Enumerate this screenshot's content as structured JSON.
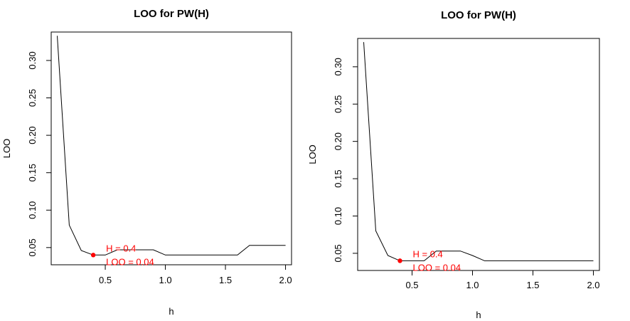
{
  "chart_data": [
    {
      "type": "line",
      "title": "LOO for PW(H)",
      "xlabel": "h",
      "ylabel": "LOO",
      "xlim": [
        0.05,
        2.05
      ],
      "ylim": [
        0.027,
        0.338
      ],
      "xticks": [
        "0.5",
        "1.0",
        "1.5",
        "2.0"
      ],
      "yticks": [
        "0.05",
        "0.10",
        "0.15",
        "0.20",
        "0.25",
        "0.30"
      ],
      "x": [
        0.1,
        0.2,
        0.3,
        0.4,
        0.5,
        0.6,
        0.7,
        0.8,
        0.9,
        1.0,
        1.1,
        1.2,
        1.3,
        1.4,
        1.5,
        1.6,
        1.7,
        1.8,
        1.9,
        2.0
      ],
      "y": [
        0.333,
        0.08,
        0.046,
        0.04,
        0.04,
        0.047,
        0.047,
        0.047,
        0.047,
        0.04,
        0.04,
        0.04,
        0.04,
        0.04,
        0.04,
        0.04,
        0.053,
        0.053,
        0.053,
        0.053
      ],
      "highlight": {
        "x": 0.4,
        "y": 0.04,
        "color": "#ff0000"
      },
      "annotations": [
        "H = 0.4",
        "LOO = 0.04"
      ],
      "line_color": "#000000",
      "grid": false
    },
    {
      "type": "line",
      "title": "LOO for PW(H)",
      "xlabel": "h",
      "ylabel": "LOO",
      "xlim": [
        0.05,
        2.05
      ],
      "ylim": [
        0.027,
        0.338
      ],
      "xticks": [
        "0.5",
        "1.0",
        "1.5",
        "2.0"
      ],
      "yticks": [
        "0.05",
        "0.10",
        "0.15",
        "0.20",
        "0.25",
        "0.30"
      ],
      "x": [
        0.1,
        0.2,
        0.3,
        0.4,
        0.5,
        0.6,
        0.7,
        0.8,
        0.9,
        1.0,
        1.1,
        1.2,
        1.3,
        1.4,
        1.5,
        1.6,
        1.7,
        1.8,
        1.9,
        2.0
      ],
      "y": [
        0.333,
        0.08,
        0.047,
        0.04,
        0.04,
        0.04,
        0.053,
        0.053,
        0.053,
        0.047,
        0.04,
        0.04,
        0.04,
        0.04,
        0.04,
        0.04,
        0.04,
        0.04,
        0.04,
        0.04
      ],
      "highlight": {
        "x": 0.4,
        "y": 0.04,
        "color": "#ff0000"
      },
      "annotations": [
        "H = 0.4",
        "LOO = 0.04"
      ],
      "line_color": "#000000",
      "grid": false
    }
  ]
}
